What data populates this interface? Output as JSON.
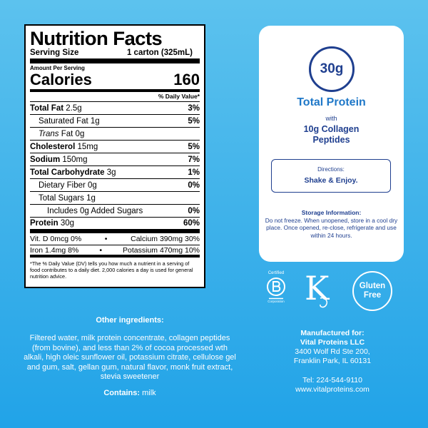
{
  "nutrition": {
    "title": "Nutrition Facts",
    "serving_size_label": "Serving Size",
    "serving_size_value": "1 carton (325mL)",
    "amount_per_serving": "Amount Per Serving",
    "calories_label": "Calories",
    "calories_value": "160",
    "dv_header": "% Daily Value*",
    "total_fat_label": "Total Fat",
    "total_fat_amount": "2.5g",
    "total_fat_pct": "3%",
    "sat_fat_label": "Saturated Fat 1g",
    "sat_fat_pct": "5%",
    "trans_fat_trans": "Trans",
    "trans_fat_rest": "Fat 0g",
    "cholesterol_label": "Cholesterol",
    "cholesterol_amount": "15mg",
    "cholesterol_pct": "5%",
    "sodium_label": "Sodium",
    "sodium_amount": "150mg",
    "sodium_pct": "7%",
    "carb_label": "Total Carbohydrate",
    "carb_amount": "3g",
    "carb_pct": "1%",
    "fiber_label": "Dietary Fiber 0g",
    "fiber_pct": "0%",
    "sugars_label": "Total Sugars 1g",
    "added_sugars_label": "Includes 0g Added Sugars",
    "added_sugars_pct": "0%",
    "protein_label": "Protein",
    "protein_amount": "30g",
    "protein_pct": "60%",
    "vitd": "Vit. D 0mcg 0%",
    "bullet": "•",
    "calcium": "Calcium 390mg 30%",
    "iron": "Iron 1.4mg 8%",
    "potassium": "Potassium 470mg 10%",
    "footnote": "*The % Daily Value (DV) tells you how much a nutrient in a serving of food contributes to a daily diet. 2,000 calories a day is used for general nutrition advice."
  },
  "card": {
    "protein_badge": "30g",
    "total_protein": "Total Protein",
    "with": "with",
    "collagen_line1": "10g Collagen",
    "collagen_line2": "Peptides",
    "directions_label": "Directions:",
    "directions_value": "Shake & Enjoy.",
    "storage_label": "Storage Information:",
    "storage_text": "Do not freeze. When unopened, store in a cool dry place. Once opened, re-close, refrigerate and use within 24 hours."
  },
  "certs": {
    "bcorp_certified": "Certified",
    "bcorp_corporation": "Corporation",
    "gluten_line1": "Gluten",
    "gluten_line2": "Free",
    "kosher_mark": "K"
  },
  "ingredients": {
    "heading": "Other ingredients:",
    "text": "Filtered water, milk protein concentrate, collagen peptides (from bovine), and less than 2% of cocoa processed wth alkali, high oleic sunflower oil, potassium citrate, cellulose gel and gum, salt, gellan gum, natural flavor, monk fruit extract, stevia sweetener",
    "contains_label": "Contains:",
    "contains_value": "milk"
  },
  "manufacturer": {
    "heading": "Manufactured for:",
    "name": "Vital Proteins LLC",
    "address1": "3400 Wolf Rd Ste 200,",
    "address2": "Franklin Park, IL 60131",
    "tel": "Tel: 224-544-9110",
    "website": "www.vitalproteins.com"
  },
  "colors": {
    "background_top": "#5cc2ee",
    "background_bottom": "#21a3e8",
    "navy": "#1f3f8f",
    "accent_blue": "#1f78c8"
  }
}
